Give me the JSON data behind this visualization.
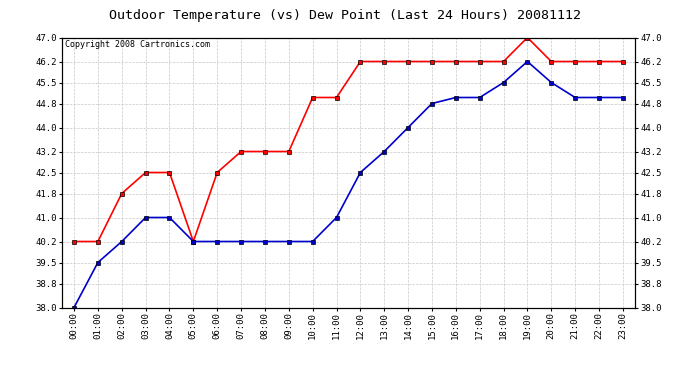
{
  "title": "Outdoor Temperature (vs) Dew Point (Last 24 Hours) 20081112",
  "copyright": "Copyright 2008 Cartronics.com",
  "x_labels": [
    "00:00",
    "01:00",
    "02:00",
    "03:00",
    "04:00",
    "05:00",
    "06:00",
    "07:00",
    "08:00",
    "09:00",
    "10:00",
    "11:00",
    "12:00",
    "13:00",
    "14:00",
    "15:00",
    "16:00",
    "17:00",
    "18:00",
    "19:00",
    "20:00",
    "21:00",
    "22:00",
    "23:00"
  ],
  "temp_data": [
    40.2,
    40.2,
    41.8,
    42.5,
    42.5,
    40.2,
    42.5,
    43.2,
    43.2,
    43.2,
    45.0,
    45.0,
    46.2,
    46.2,
    46.2,
    46.2,
    46.2,
    46.2,
    46.2,
    47.0,
    46.2,
    46.2,
    46.2,
    46.2
  ],
  "dew_data": [
    38.0,
    39.5,
    40.2,
    41.0,
    41.0,
    40.2,
    40.2,
    40.2,
    40.2,
    40.2,
    40.2,
    41.0,
    42.5,
    43.2,
    44.0,
    44.8,
    45.0,
    45.0,
    45.5,
    46.2,
    45.5,
    45.0,
    45.0,
    45.0
  ],
  "temp_color": "#ff0000",
  "dew_color": "#0000cc",
  "bg_color": "#ffffff",
  "plot_bg": "#ffffff",
  "grid_color": "#c8c8c8",
  "ylim_min": 38.0,
  "ylim_max": 47.0,
  "yticks": [
    38.0,
    38.8,
    39.5,
    40.2,
    41.0,
    41.8,
    42.5,
    43.2,
    44.0,
    44.8,
    45.5,
    46.2,
    47.0
  ],
  "marker": "s",
  "markersize": 2.5,
  "linewidth": 1.2,
  "title_fontsize": 9.5,
  "tick_fontsize": 6.5,
  "copyright_fontsize": 6
}
